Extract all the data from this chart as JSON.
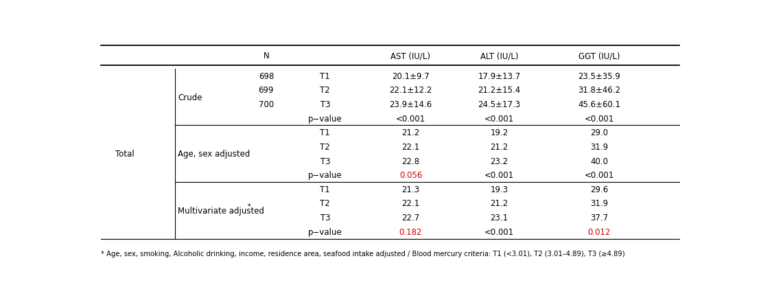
{
  "footnote": "* Age, sex, smoking, Alcoholic drinking, income, residence area, seafood intake adjusted / Blood mercury criteria: T1 (<3.01), T2 (3.01–4.89), T3 (≥4.89)",
  "sections": [
    {
      "label": "Crude",
      "label_super": false,
      "rows": [
        {
          "n": "698",
          "t": "T1",
          "ast": "20.1±9.7",
          "alt": "17.9±13.7",
          "ggt": "23.5±35.9",
          "ast_red": false,
          "alt_red": false,
          "ggt_red": false
        },
        {
          "n": "699",
          "t": "T2",
          "ast": "22.1±12.2",
          "alt": "21.2±15.4",
          "ggt": "31.8±46.2",
          "ast_red": false,
          "alt_red": false,
          "ggt_red": false
        },
        {
          "n": "700",
          "t": "T3",
          "ast": "23.9±14.6",
          "alt": "24.5±17.3",
          "ggt": "45.6±60.1",
          "ast_red": false,
          "alt_red": false,
          "ggt_red": false
        },
        {
          "n": "",
          "t": "p−value",
          "ast": "<0.001",
          "alt": "<0.001",
          "ggt": "<0.001",
          "ast_red": false,
          "alt_red": false,
          "ggt_red": false
        }
      ]
    },
    {
      "label": "Age, sex adjusted",
      "label_super": false,
      "rows": [
        {
          "n": "",
          "t": "T1",
          "ast": "21.2",
          "alt": "19.2",
          "ggt": "29.0",
          "ast_red": false,
          "alt_red": false,
          "ggt_red": false
        },
        {
          "n": "",
          "t": "T2",
          "ast": "22.1",
          "alt": "21.2",
          "ggt": "31.9",
          "ast_red": false,
          "alt_red": false,
          "ggt_red": false
        },
        {
          "n": "",
          "t": "T3",
          "ast": "22.8",
          "alt": "23.2",
          "ggt": "40.0",
          "ast_red": false,
          "alt_red": false,
          "ggt_red": false
        },
        {
          "n": "",
          "t": "p−value",
          "ast": "0.056",
          "alt": "<0.001",
          "ggt": "<0.001",
          "ast_red": true,
          "alt_red": false,
          "ggt_red": false
        }
      ]
    },
    {
      "label": "Multivariate adjusted",
      "label_super": true,
      "rows": [
        {
          "n": "",
          "t": "T1",
          "ast": "21.3",
          "alt": "19.3",
          "ggt": "29.6",
          "ast_red": false,
          "alt_red": false,
          "ggt_red": false
        },
        {
          "n": "",
          "t": "T2",
          "ast": "22.1",
          "alt": "21.2",
          "ggt": "31.9",
          "ast_red": false,
          "alt_red": false,
          "ggt_red": false
        },
        {
          "n": "",
          "t": "T3",
          "ast": "22.7",
          "alt": "23.1",
          "ggt": "37.7",
          "ast_red": false,
          "alt_red": false,
          "ggt_red": false
        },
        {
          "n": "",
          "t": "p−value",
          "ast": "0.182",
          "alt": "<0.001",
          "ggt": "0.012",
          "ast_red": true,
          "alt_red": false,
          "ggt_red": true
        }
      ]
    }
  ],
  "col_x": {
    "group": 0.05,
    "section": 0.14,
    "n": 0.29,
    "t": 0.39,
    "ast": 0.535,
    "alt": 0.685,
    "ggt": 0.855
  },
  "colors": {
    "header_text": "#000000",
    "cell_text": "#000000",
    "red_text": "#cc0000",
    "bg": "#ffffff"
  },
  "font_size": 8.5,
  "footnote_font_size": 7.2
}
